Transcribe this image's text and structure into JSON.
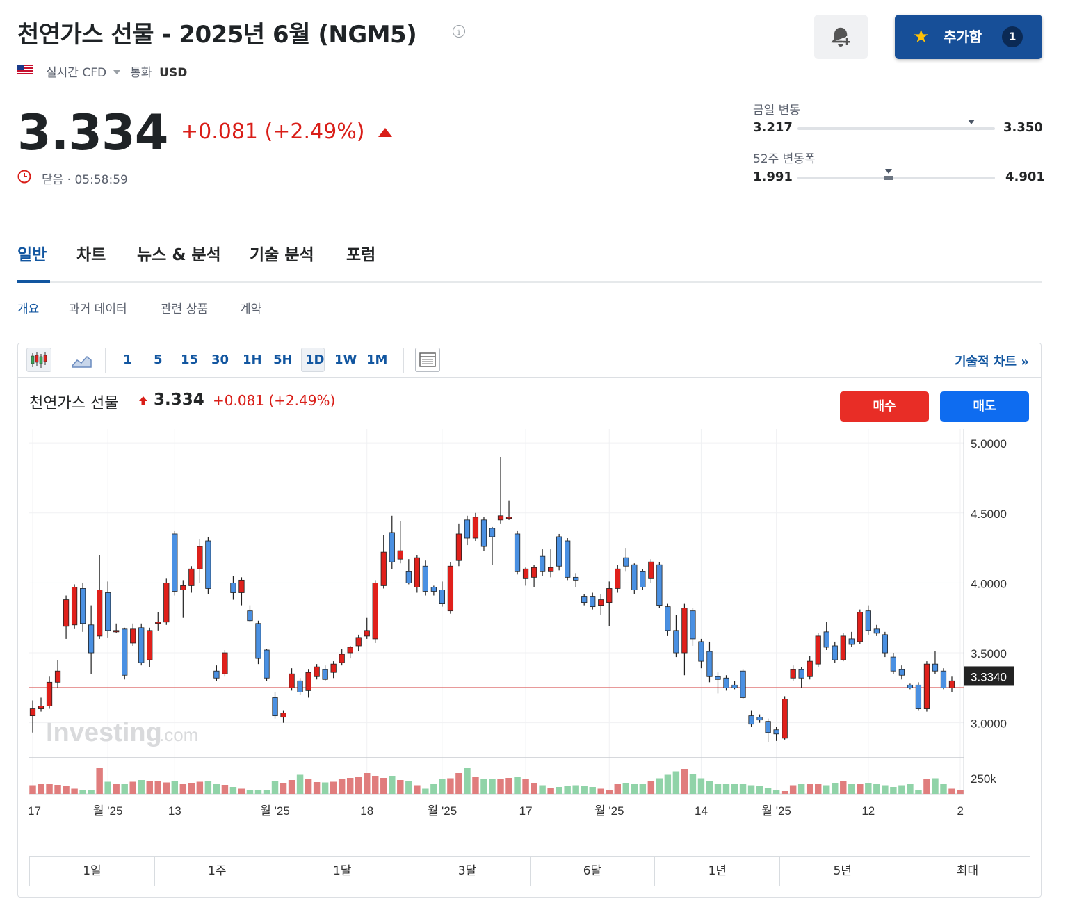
{
  "header": {
    "title": "천연가스 선물 - 2025년 6월 (NGM5)",
    "info_icon": "info-icon",
    "market_type": "실시간 CFD",
    "currency_label": "통화",
    "currency": "USD",
    "flag_icon": "us-flag-icon"
  },
  "actions": {
    "alert_icon": "bell-plus-icon",
    "add_label": "추가함",
    "add_icon": "star-icon",
    "add_count": "1"
  },
  "quote": {
    "price": "3.334",
    "change": "+0.081 (+2.49%)",
    "status": "닫음 · 05:58:59",
    "up_color": "#d91e18"
  },
  "ranges": {
    "day_label": "금일 변동",
    "day_low": "3.217",
    "day_high": "3.350",
    "day_position": 0.88,
    "week52_label": "52주 변동폭",
    "week52_low": "1.991",
    "week52_high": "4.901",
    "week52_position": 0.46
  },
  "tabs": [
    "일반",
    "차트",
    "뉴스 & 분석",
    "기술 분석",
    "포럼"
  ],
  "subtabs": [
    "개요",
    "과거 데이터",
    "관련 상품",
    "계약"
  ],
  "toolbar": {
    "timeframes": [
      "1",
      "5",
      "15",
      "30",
      "1H",
      "5H",
      "1D",
      "1W",
      "1M"
    ],
    "active_timeframe": "1D",
    "tech_chart_label": "기술적 차트 »"
  },
  "chart_header": {
    "name": "천연가스 선물",
    "price": "3.334",
    "change": "+0.081 (+2.49%)",
    "buy_label": "매수",
    "sell_label": "매도"
  },
  "range_buttons": [
    "1일",
    "1주",
    "1달",
    "3달",
    "6달",
    "1년",
    "5년",
    "최대"
  ],
  "chart_data": {
    "type": "candlestick",
    "ylim": [
      2.75,
      5.1
    ],
    "y_ticks": [
      "5.0000",
      "4.5000",
      "4.0000",
      "3.5000",
      "3.0000"
    ],
    "y_tick_values": [
      5.0,
      4.5,
      4.0,
      3.5,
      3.0
    ],
    "last_price_label": "3.3340",
    "last_price": 3.334,
    "reference_line": 3.253,
    "volume_tick": "250k",
    "x_labels": [
      "17",
      "월 '25",
      "13",
      "월 '25",
      "18",
      "월 '25",
      "17",
      "월 '25",
      "14",
      "월 '25",
      "12",
      "2"
    ],
    "x_label_index": [
      0,
      9,
      17,
      29,
      40,
      49,
      59,
      69,
      80,
      89,
      100,
      111
    ],
    "watermark": "Investing.com",
    "up_color": "#e0201b",
    "down_color": "#4a90e2",
    "candles": [
      [
        3.05,
        3.1,
        2.93,
        3.16
      ],
      [
        3.1,
        3.12,
        3.08,
        3.18
      ],
      [
        3.12,
        3.29,
        3.1,
        3.33
      ],
      [
        3.29,
        3.37,
        3.25,
        3.45
      ],
      [
        3.69,
        3.88,
        3.6,
        3.91
      ],
      [
        3.7,
        3.97,
        3.67,
        3.99
      ],
      [
        3.96,
        3.71,
        3.65,
        4.0
      ],
      [
        3.7,
        3.5,
        3.35,
        3.84
      ],
      [
        3.62,
        3.95,
        3.6,
        4.2
      ],
      [
        3.93,
        3.66,
        3.61,
        4.01
      ],
      [
        3.66,
        3.66,
        3.64,
        3.71
      ],
      [
        3.67,
        3.34,
        3.31,
        3.68
      ],
      [
        3.57,
        3.67,
        3.55,
        3.71
      ],
      [
        3.68,
        3.43,
        3.41,
        3.71
      ],
      [
        3.45,
        3.66,
        3.4,
        3.68
      ],
      [
        3.71,
        3.72,
        3.66,
        3.79
      ],
      [
        3.72,
        4.0,
        3.7,
        4.03
      ],
      [
        4.35,
        3.94,
        3.91,
        4.37
      ],
      [
        3.95,
        3.98,
        3.75,
        4.02
      ],
      [
        3.98,
        4.1,
        3.93,
        4.12
      ],
      [
        4.1,
        4.26,
        4.0,
        4.31
      ],
      [
        4.3,
        3.96,
        3.92,
        4.33
      ],
      [
        3.37,
        3.32,
        3.3,
        3.41
      ],
      [
        3.35,
        3.5,
        3.33,
        3.52
      ],
      [
        4.0,
        3.93,
        3.88,
        4.05
      ],
      [
        3.93,
        4.02,
        3.84,
        4.04
      ],
      [
        3.8,
        3.73,
        3.72,
        3.84
      ],
      [
        3.71,
        3.46,
        3.42,
        3.73
      ],
      [
        3.52,
        3.32,
        3.3,
        3.53
      ],
      [
        3.18,
        3.05,
        3.03,
        3.22
      ],
      [
        3.04,
        3.07,
        3.0,
        3.09
      ],
      [
        3.25,
        3.35,
        3.23,
        3.39
      ],
      [
        3.3,
        3.22,
        3.2,
        3.32
      ],
      [
        3.23,
        3.36,
        3.18,
        3.38
      ],
      [
        3.33,
        3.4,
        3.31,
        3.42
      ],
      [
        3.38,
        3.31,
        3.3,
        3.41
      ],
      [
        3.36,
        3.42,
        3.32,
        3.44
      ],
      [
        3.43,
        3.49,
        3.41,
        3.53
      ],
      [
        3.5,
        3.54,
        3.46,
        3.55
      ],
      [
        3.55,
        3.61,
        3.51,
        3.63
      ],
      [
        3.62,
        3.66,
        3.6,
        3.75
      ],
      [
        3.6,
        4.0,
        3.57,
        4.02
      ],
      [
        3.98,
        4.22,
        3.96,
        4.34
      ],
      [
        4.36,
        4.15,
        4.1,
        4.48
      ],
      [
        4.17,
        4.23,
        4.14,
        4.44
      ],
      [
        4.08,
        4.0,
        3.99,
        4.17
      ],
      [
        3.97,
        4.18,
        3.93,
        4.2
      ],
      [
        4.12,
        3.94,
        3.91,
        4.16
      ],
      [
        3.97,
        3.94,
        3.91,
        3.98
      ],
      [
        3.95,
        3.85,
        3.83,
        4.01
      ],
      [
        3.8,
        4.12,
        3.78,
        4.15
      ],
      [
        4.16,
        4.35,
        4.12,
        4.42
      ],
      [
        4.45,
        4.32,
        4.27,
        4.48
      ],
      [
        4.32,
        4.47,
        4.3,
        4.5
      ],
      [
        4.45,
        4.26,
        4.23,
        4.47
      ],
      [
        4.39,
        4.33,
        4.13,
        4.4
      ],
      [
        4.45,
        4.48,
        4.42,
        4.9
      ],
      [
        4.47,
        4.47,
        4.45,
        4.59
      ],
      [
        4.35,
        4.08,
        4.06,
        4.37
      ],
      [
        4.03,
        4.1,
        3.98,
        4.11
      ],
      [
        4.04,
        4.11,
        3.97,
        4.13
      ],
      [
        4.19,
        4.08,
        4.05,
        4.24
      ],
      [
        4.08,
        4.11,
        4.04,
        4.24
      ],
      [
        4.33,
        4.12,
        4.09,
        4.35
      ],
      [
        4.3,
        4.04,
        4.02,
        4.32
      ],
      [
        4.04,
        4.02,
        3.97,
        4.07
      ],
      [
        3.9,
        3.86,
        3.84,
        3.92
      ],
      [
        3.9,
        3.83,
        3.81,
        3.93
      ],
      [
        3.84,
        3.88,
        3.77,
        3.92
      ],
      [
        3.86,
        3.96,
        3.69,
        4.01
      ],
      [
        3.96,
        4.1,
        3.93,
        4.13
      ],
      [
        4.18,
        4.12,
        4.08,
        4.25
      ],
      [
        4.13,
        3.95,
        3.92,
        4.14
      ],
      [
        4.08,
        3.97,
        3.95,
        4.1
      ],
      [
        4.03,
        4.15,
        4.0,
        4.17
      ],
      [
        4.13,
        3.84,
        3.82,
        4.15
      ],
      [
        3.83,
        3.66,
        3.62,
        3.85
      ],
      [
        3.66,
        3.5,
        3.47,
        3.77
      ],
      [
        3.5,
        3.82,
        3.34,
        3.85
      ],
      [
        3.8,
        3.6,
        3.55,
        3.82
      ],
      [
        3.58,
        3.44,
        3.39,
        3.6
      ],
      [
        3.51,
        3.33,
        3.29,
        3.58
      ],
      [
        3.33,
        3.31,
        3.21,
        3.36
      ],
      [
        3.32,
        3.25,
        3.23,
        3.34
      ],
      [
        3.27,
        3.25,
        3.24,
        3.3
      ],
      [
        3.37,
        3.18,
        3.17,
        3.38
      ],
      [
        3.05,
        2.99,
        2.97,
        3.09
      ],
      [
        3.04,
        3.02,
        3.0,
        3.06
      ],
      [
        3.01,
        2.93,
        2.86,
        3.03
      ],
      [
        2.95,
        2.92,
        2.87,
        2.97
      ],
      [
        2.89,
        3.17,
        2.88,
        3.19
      ],
      [
        3.32,
        3.38,
        3.3,
        3.41
      ],
      [
        3.38,
        3.32,
        3.25,
        3.4
      ],
      [
        3.33,
        3.44,
        3.31,
        3.48
      ],
      [
        3.42,
        3.62,
        3.4,
        3.64
      ],
      [
        3.65,
        3.54,
        3.52,
        3.72
      ],
      [
        3.55,
        3.45,
        3.43,
        3.58
      ],
      [
        3.45,
        3.62,
        3.44,
        3.64
      ],
      [
        3.6,
        3.56,
        3.54,
        3.65
      ],
      [
        3.58,
        3.79,
        3.56,
        3.81
      ],
      [
        3.8,
        3.66,
        3.63,
        3.84
      ],
      [
        3.67,
        3.64,
        3.62,
        3.7
      ],
      [
        3.63,
        3.5,
        3.47,
        3.65
      ],
      [
        3.47,
        3.37,
        3.35,
        3.5
      ],
      [
        3.38,
        3.34,
        3.31,
        3.41
      ],
      [
        3.27,
        3.25,
        3.24,
        3.28
      ],
      [
        3.27,
        3.1,
        3.09,
        3.29
      ],
      [
        3.1,
        3.42,
        3.08,
        3.44
      ],
      [
        3.42,
        3.37,
        3.35,
        3.51
      ],
      [
        3.37,
        3.25,
        3.24,
        3.39
      ],
      [
        3.25,
        3.3,
        3.22,
        3.33
      ]
    ],
    "volumes": [
      0.25,
      0.28,
      0.3,
      0.26,
      0.22,
      0.15,
      0.1,
      0.12,
      0.74,
      0.35,
      0.3,
      0.28,
      0.35,
      0.4,
      0.38,
      0.36,
      0.33,
      0.36,
      0.3,
      0.32,
      0.35,
      0.38,
      0.3,
      0.26,
      0.2,
      0.15,
      0.12,
      0.1,
      0.1,
      0.38,
      0.32,
      0.4,
      0.55,
      0.44,
      0.34,
      0.33,
      0.35,
      0.42,
      0.46,
      0.48,
      0.6,
      0.52,
      0.46,
      0.52,
      0.4,
      0.38,
      0.25,
      0.15,
      0.28,
      0.42,
      0.45,
      0.6,
      0.75,
      0.48,
      0.42,
      0.44,
      0.42,
      0.46,
      0.5,
      0.44,
      0.32,
      0.25,
      0.18,
      0.2,
      0.22,
      0.25,
      0.22,
      0.2,
      0.15,
      0.1,
      0.3,
      0.32,
      0.3,
      0.28,
      0.36,
      0.45,
      0.55,
      0.65,
      0.72,
      0.58,
      0.45,
      0.38,
      0.3,
      0.3,
      0.28,
      0.3,
      0.25,
      0.22,
      0.18,
      0.1,
      0.08,
      0.25,
      0.28,
      0.3,
      0.28,
      0.25,
      0.32,
      0.38,
      0.3,
      0.28,
      0.32,
      0.3,
      0.25,
      0.2,
      0.25,
      0.3,
      0.1,
      0.42,
      0.45,
      0.28,
      0.15,
      0.12
    ],
    "volume_colors_up": "#e07d7d",
    "volume_colors_down": "#90d3a8"
  }
}
